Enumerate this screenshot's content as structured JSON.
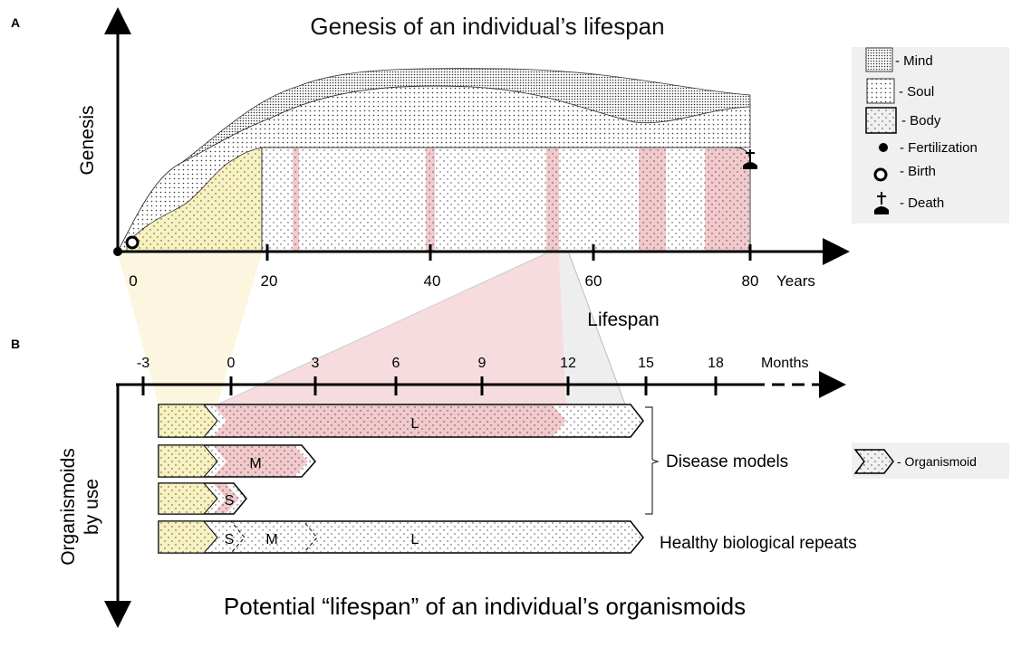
{
  "panel_a": {
    "label": "A",
    "title": "Genesis of an individual’s lifespan",
    "y_label": "Genesis",
    "x_label": "Lifespan",
    "x_unit": "Years",
    "x_ticks": [
      "0",
      "20",
      "40",
      "60",
      "80"
    ],
    "legend": {
      "mind": "- Mind",
      "soul": "- Soul",
      "body": "- Body",
      "fertilization": "- Fertilization",
      "birth": "- Birth",
      "death": "- Death"
    }
  },
  "panel_b": {
    "label": "B",
    "title": "Potential “lifespan” of an individual’s organismoids",
    "y_label_line1": "Organismoids",
    "y_label_line2": "by use",
    "x_unit": "Months",
    "x_ticks": [
      "-3",
      "0",
      "3",
      "6",
      "9",
      "12",
      "15",
      "18"
    ],
    "rows": {
      "l": "L",
      "m": "M",
      "s": "S",
      "healthy_s": "S",
      "healthy_m": "M",
      "healthy_l": "L"
    },
    "disease_models": "Disease models",
    "healthy_repeats": "Healthy biological repeats",
    "legend_organismoid": "- Organismoid"
  },
  "colors": {
    "yellow": "#f7f2c0",
    "red": "#f2c9cc",
    "legend_bg": "#f0f0f0"
  }
}
